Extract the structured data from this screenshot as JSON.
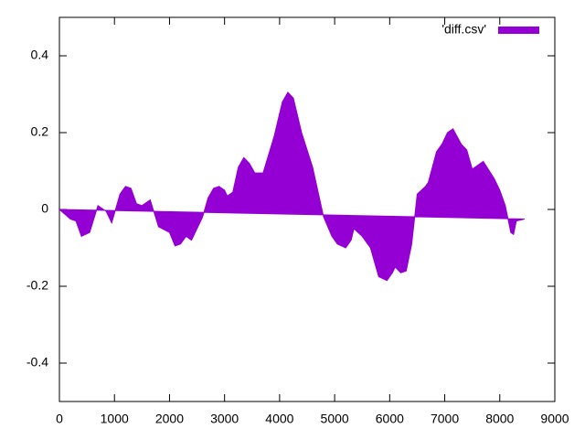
{
  "chart_data": {
    "type": "area",
    "series": [
      {
        "name": "'diff.csv'",
        "color": "#9400d3"
      }
    ],
    "x": [
      0,
      200,
      300,
      400,
      550,
      700,
      850,
      950,
      1100,
      1200,
      1300,
      1400,
      1500,
      1650,
      1800,
      2000,
      2100,
      2200,
      2300,
      2400,
      2600,
      2700,
      2800,
      2900,
      3000,
      3050,
      3150,
      3250,
      3350,
      3450,
      3550,
      3700,
      3900,
      4050,
      4150,
      4250,
      4400,
      4600,
      4800,
      4950,
      5050,
      5200,
      5300,
      5350,
      5500,
      5650,
      5800,
      5950,
      6050,
      6100,
      6200,
      6300,
      6400,
      6500,
      6650,
      6700,
      6850,
      6950,
      7050,
      7150,
      7300,
      7400,
      7500,
      7700,
      7900,
      8000,
      8100,
      8200,
      8250,
      8300,
      8450
    ],
    "values": [
      0,
      -0.025,
      -0.03,
      -0.07,
      -0.06,
      0.01,
      -0.005,
      -0.035,
      0.04,
      0.06,
      0.055,
      0.015,
      0.01,
      0.025,
      -0.045,
      -0.06,
      -0.095,
      -0.09,
      -0.07,
      -0.08,
      -0.02,
      0.03,
      0.055,
      0.06,
      0.05,
      0.035,
      0.045,
      0.11,
      0.135,
      0.12,
      0.095,
      0.095,
      0.19,
      0.28,
      0.305,
      0.29,
      0.2,
      0.11,
      -0.02,
      -0.07,
      -0.09,
      -0.1,
      -0.08,
      -0.05,
      -0.07,
      -0.1,
      -0.175,
      -0.185,
      -0.165,
      -0.15,
      -0.165,
      -0.16,
      -0.09,
      0.04,
      0.06,
      0.07,
      0.15,
      0.17,
      0.2,
      0.21,
      0.17,
      0.155,
      0.105,
      0.125,
      0.08,
      0.05,
      0.01,
      -0.06,
      -0.065,
      -0.03,
      -0.025
    ],
    "xlim": [
      0,
      9000
    ],
    "xticks": [
      0,
      1000,
      2000,
      3000,
      4000,
      5000,
      6000,
      7000,
      8000,
      9000
    ],
    "ylim": [
      -0.5,
      0.5
    ],
    "yticks": [
      -0.4,
      -0.2,
      0,
      0.2,
      0.4
    ],
    "legend": "top-right",
    "grid": false
  }
}
